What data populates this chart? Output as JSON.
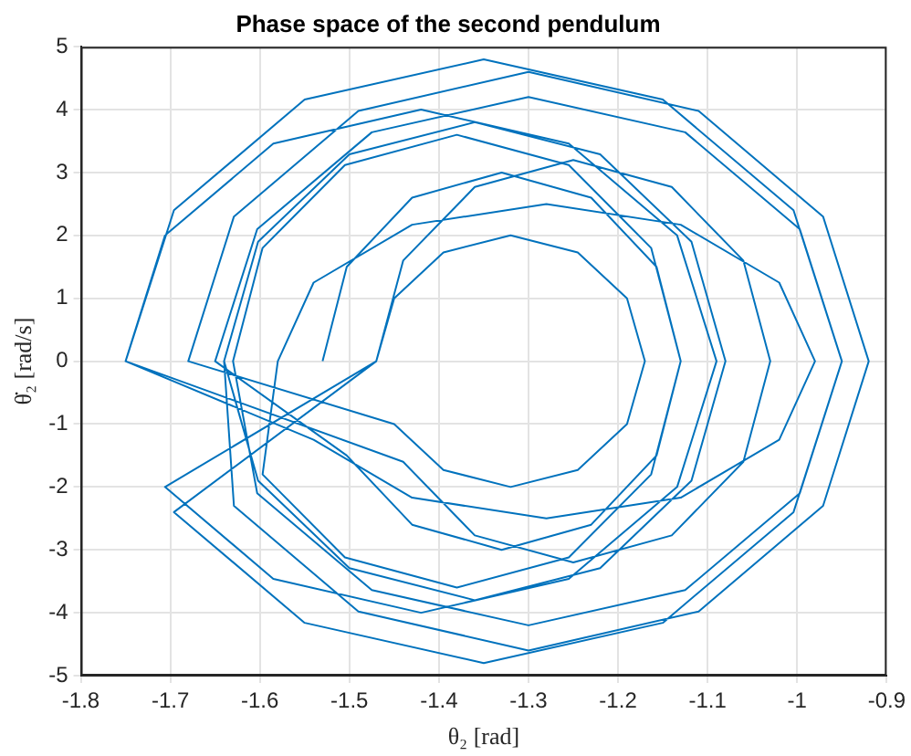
{
  "chart_data": {
    "type": "line",
    "title": "Phase space of the second pendulum",
    "xlabel": "θ₂ [rad]",
    "ylabel": "θ̇₂ [rad/s]",
    "xlim": [
      -1.8,
      -0.9
    ],
    "xticks": [
      -1.8,
      -1.7,
      -1.6,
      -1.5,
      -1.4,
      -1.3,
      -1.2,
      -1.1,
      -1,
      -0.9
    ],
    "ylim": [
      -5,
      5
    ],
    "yticks": [
      -5,
      -4,
      -3,
      -2,
      -1,
      0,
      1,
      2,
      3,
      4,
      5
    ],
    "grid": true,
    "marker": "none",
    "line_style": "solid",
    "series": [
      {
        "color": "#0072bd",
        "x": [
          -1.53,
          -1.503,
          -1.43,
          -1.33,
          -1.23,
          -1.157,
          -1.13,
          -1.157,
          -1.23,
          -1.33,
          -1.43,
          -1.503,
          -1.65,
          -1.603,
          -1.475,
          -1.3,
          -1.125,
          -0.997,
          -0.95,
          -0.997,
          -1.125,
          -1.3,
          -1.475,
          -1.603,
          -1.63,
          -1.597,
          -1.505,
          -1.38,
          -1.255,
          -1.163,
          -1.13,
          -1.163,
          -1.255,
          -1.38,
          -1.505,
          -1.597,
          -1.58,
          -1.54,
          -1.43,
          -1.28,
          -1.13,
          -1.02,
          -0.98,
          -1.02,
          -1.13,
          -1.28,
          -1.43,
          -1.54,
          -1.75,
          -1.696,
          -1.55,
          -1.35,
          -1.15,
          -1.004,
          -0.95,
          -1.004,
          -1.15,
          -1.35,
          -1.55,
          -1.696,
          -1.47,
          -1.44,
          -1.36,
          -1.25,
          -1.14,
          -1.06,
          -1.03,
          -1.06,
          -1.14,
          -1.25,
          -1.36,
          -1.44,
          -1.75,
          -1.706,
          -1.585,
          -1.42,
          -1.255,
          -1.134,
          -1.09,
          -1.134,
          -1.255,
          -1.42,
          -1.585,
          -1.706,
          -1.47,
          -1.45,
          -1.395,
          -1.32,
          -1.245,
          -1.19,
          -1.17,
          -1.19,
          -1.245,
          -1.32,
          -1.395,
          -1.45,
          -1.68,
          -1.629,
          -1.49,
          -1.3,
          -1.11,
          -0.971,
          -0.92,
          -0.971,
          -1.11,
          -1.3,
          -1.49,
          -1.629,
          -1.64,
          -1.602,
          -1.5,
          -1.36,
          -1.22,
          -1.118,
          -1.08,
          -1.118,
          -1.22,
          -1.36,
          -1.5,
          -1.602,
          -1.64
        ],
        "values": [
          0,
          1.5,
          2.6,
          3,
          2.6,
          1.5,
          0,
          -1.5,
          -2.6,
          -3,
          -2.6,
          -1.5,
          0,
          2.1,
          3.64,
          4.2,
          3.64,
          2.1,
          0,
          -2.1,
          -3.64,
          -4.2,
          -3.64,
          -2.1,
          0,
          1.8,
          3.12,
          3.6,
          3.12,
          1.8,
          0,
          -1.8,
          -3.12,
          -3.6,
          -3.12,
          -1.8,
          0,
          1.25,
          2.17,
          2.5,
          2.17,
          1.25,
          0,
          -1.25,
          -2.17,
          -2.5,
          -2.17,
          -1.25,
          0,
          2.4,
          4.16,
          4.8,
          4.16,
          2.4,
          0,
          -2.4,
          -4.16,
          -4.8,
          -4.16,
          -2.4,
          0,
          1.6,
          2.77,
          3.2,
          2.77,
          1.6,
          0,
          -1.6,
          -2.77,
          -3.2,
          -2.77,
          -1.6,
          0,
          2,
          3.46,
          4,
          3.46,
          2,
          0,
          -2,
          -3.46,
          -4,
          -3.46,
          -2,
          0,
          1,
          1.73,
          2,
          1.73,
          1,
          0,
          -1,
          -1.73,
          -2,
          -1.73,
          -1,
          0,
          2.3,
          3.98,
          4.6,
          3.98,
          2.3,
          0,
          -2.3,
          -3.98,
          -4.6,
          -3.98,
          -2.3,
          0,
          1.9,
          3.29,
          3.8,
          3.29,
          1.9,
          0,
          -1.9,
          -3.29,
          -3.8,
          -3.29,
          -1.9,
          0
        ]
      }
    ]
  }
}
